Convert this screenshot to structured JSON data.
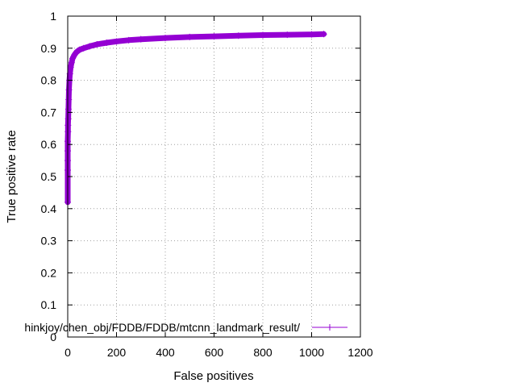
{
  "chart_data": {
    "type": "line",
    "title": "",
    "xlabel": "False positives",
    "ylabel": "True positive rate",
    "xlim": [
      0,
      1200
    ],
    "ylim": [
      0,
      1
    ],
    "x_ticks": [
      "0",
      "200",
      "400",
      "600",
      "800",
      "1000",
      "1200"
    ],
    "y_ticks": [
      "0",
      "0.1",
      "0.2",
      "0.3",
      "0.4",
      "0.5",
      "0.6",
      "0.7",
      "0.8",
      "0.9",
      "1"
    ],
    "grid": true,
    "legend_position": "bottom-right",
    "series": [
      {
        "name": "hinkjoy/chen_obj/FDDB/FDDB/mtcnn_landmark_result/",
        "color": "#9400d3",
        "marker": "plus",
        "points": [
          [
            0,
            0.42
          ],
          [
            0,
            0.52
          ],
          [
            0,
            0.55
          ],
          [
            0,
            0.58
          ],
          [
            0,
            0.61
          ],
          [
            1,
            0.64
          ],
          [
            1,
            0.66
          ],
          [
            2,
            0.68
          ],
          [
            3,
            0.71
          ],
          [
            4,
            0.74
          ],
          [
            5,
            0.77
          ],
          [
            7,
            0.8
          ],
          [
            9,
            0.82
          ],
          [
            12,
            0.84
          ],
          [
            16,
            0.855
          ],
          [
            20,
            0.868
          ],
          [
            28,
            0.88
          ],
          [
            36,
            0.888
          ],
          [
            48,
            0.895
          ],
          [
            65,
            0.9
          ],
          [
            90,
            0.906
          ],
          [
            120,
            0.912
          ],
          [
            160,
            0.917
          ],
          [
            200,
            0.921
          ],
          [
            250,
            0.925
          ],
          [
            300,
            0.928
          ],
          [
            400,
            0.932
          ],
          [
            500,
            0.935
          ],
          [
            600,
            0.937
          ],
          [
            700,
            0.939
          ],
          [
            800,
            0.941
          ],
          [
            900,
            0.942
          ],
          [
            1000,
            0.943
          ],
          [
            1050,
            0.944
          ]
        ]
      }
    ]
  }
}
